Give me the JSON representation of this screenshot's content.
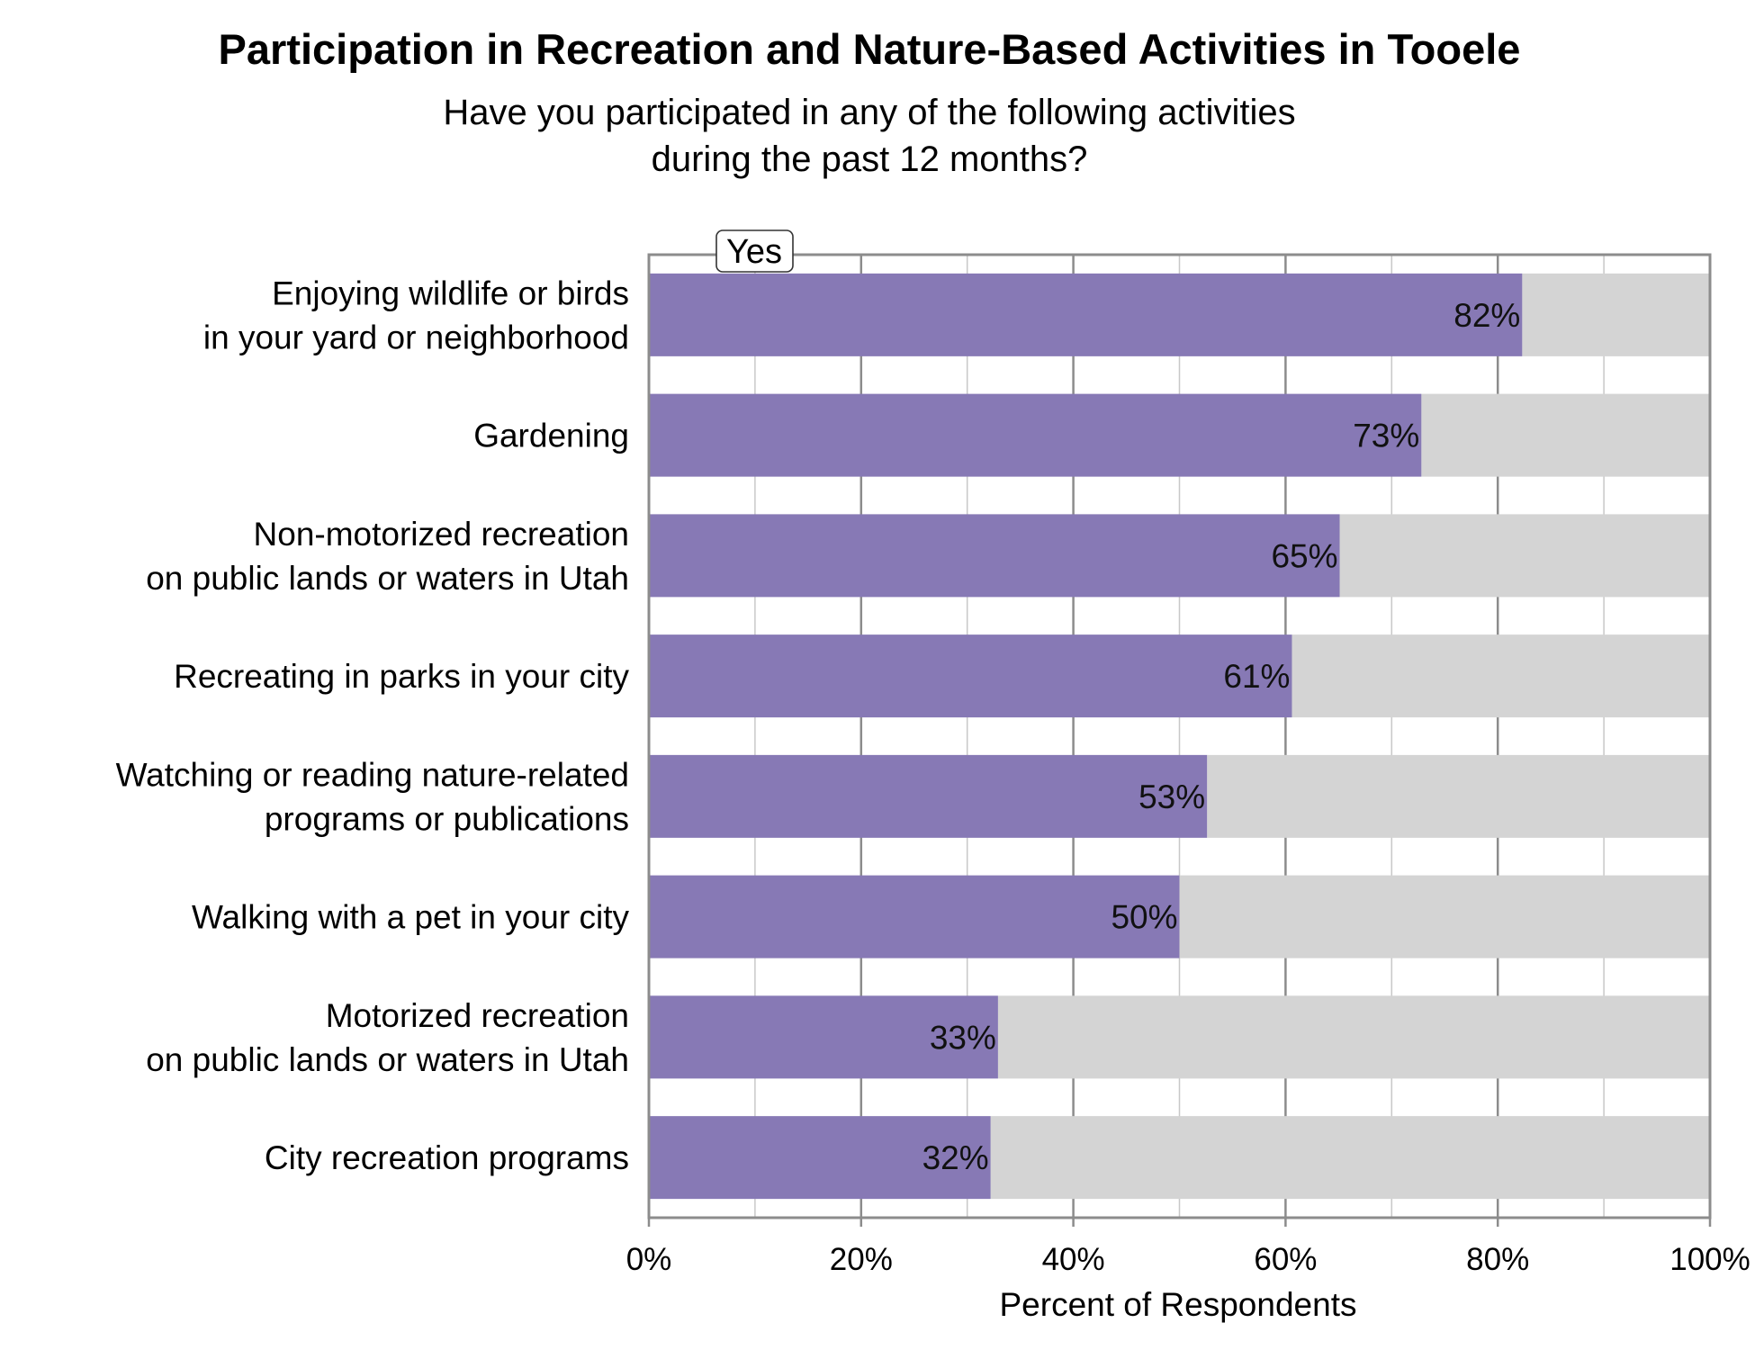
{
  "chart_data": {
    "type": "bar",
    "orientation": "horizontal",
    "stacked_to_100": true,
    "title": "Participation in Recreation and Nature-Based Activities in Tooele",
    "subtitle_lines": [
      "Have you participated in any of the following activities",
      "during the past 12 months?"
    ],
    "xlabel": "Percent of Respondents",
    "ylabel": "",
    "xlim": [
      0,
      100
    ],
    "x_ticks": [
      "0%",
      "20%",
      "40%",
      "60%",
      "80%",
      "100%"
    ],
    "grid": true,
    "legend": {
      "placement": "top-left",
      "entries": [
        "Yes"
      ]
    },
    "categories": [
      [
        "Enjoying wildlife or birds",
        "in your yard or neighborhood"
      ],
      [
        "Gardening"
      ],
      [
        "Non-motorized recreation",
        "on public lands or waters in Utah"
      ],
      [
        "Recreating in parks in your city"
      ],
      [
        "Watching or reading nature-related",
        "programs or publications"
      ],
      [
        "Walking with a pet in your city"
      ],
      [
        "Motorized recreation",
        "on public lands or waters in Utah"
      ],
      [
        "City recreation programs"
      ]
    ],
    "series": [
      {
        "name": "Yes",
        "color": "#8779b5",
        "values": [
          82.3,
          72.8,
          65.1,
          60.6,
          52.6,
          50.0,
          32.9,
          32.2
        ],
        "labels": [
          "82%",
          "73%",
          "65%",
          "61%",
          "53%",
          "50%",
          "33%",
          "32%"
        ]
      }
    ],
    "remainder_color": "#d4d4d4"
  }
}
